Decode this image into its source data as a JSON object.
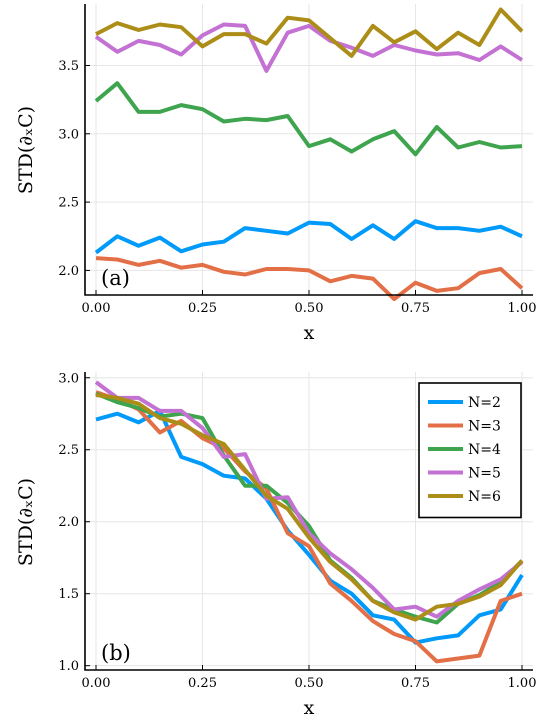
{
  "chart_data": [
    {
      "type": "line",
      "panel_label": "(a)",
      "xlabel": "x",
      "ylabel": "STD(∂ₓC)",
      "xlim": [
        0,
        1
      ],
      "ylim": [
        1.82,
        3.95
      ],
      "xticks": [
        "0.00",
        "0.25",
        "0.50",
        "0.75",
        "1.00"
      ],
      "yticks": [
        "2.0",
        "2.5",
        "3.0",
        "3.5"
      ],
      "grid": true,
      "x": [
        0,
        0.05,
        0.1,
        0.15,
        0.2,
        0.25,
        0.3,
        0.35,
        0.4,
        0.45,
        0.5,
        0.55,
        0.6,
        0.65,
        0.7,
        0.75,
        0.8,
        0.85,
        0.9,
        0.95,
        1.0
      ],
      "series": [
        {
          "color": "#009AFA",
          "values": [
            2.13,
            2.25,
            2.18,
            2.24,
            2.14,
            2.19,
            2.21,
            2.31,
            2.29,
            2.27,
            2.35,
            2.34,
            2.23,
            2.33,
            2.23,
            2.36,
            2.31,
            2.31,
            2.29,
            2.32,
            2.25
          ]
        },
        {
          "color": "#E36F47",
          "values": [
            2.09,
            2.08,
            2.04,
            2.07,
            2.02,
            2.04,
            1.99,
            1.97,
            2.01,
            2.01,
            2.0,
            1.92,
            1.96,
            1.94,
            1.79,
            1.91,
            1.85,
            1.87,
            1.98,
            2.01,
            1.87
          ]
        },
        {
          "color": "#3EA44E",
          "values": [
            3.24,
            3.37,
            3.16,
            3.16,
            3.21,
            3.18,
            3.09,
            3.11,
            3.1,
            3.13,
            2.91,
            2.96,
            2.87,
            2.96,
            3.02,
            2.85,
            3.05,
            2.9,
            2.94,
            2.9,
            2.91
          ]
        },
        {
          "color": "#C371D2",
          "values": [
            3.71,
            3.6,
            3.68,
            3.65,
            3.58,
            3.72,
            3.8,
            3.79,
            3.46,
            3.74,
            3.79,
            3.68,
            3.63,
            3.57,
            3.65,
            3.61,
            3.58,
            3.59,
            3.54,
            3.64,
            3.54
          ]
        },
        {
          "color": "#AC8D18",
          "values": [
            3.73,
            3.81,
            3.76,
            3.8,
            3.78,
            3.64,
            3.73,
            3.73,
            3.66,
            3.85,
            3.83,
            3.7,
            3.57,
            3.79,
            3.67,
            3.75,
            3.62,
            3.74,
            3.65,
            3.91,
            3.75
          ]
        }
      ]
    },
    {
      "type": "line",
      "panel_label": "(b)",
      "xlabel": "x",
      "ylabel": "STD(∂ₓC)",
      "xlim": [
        0,
        1
      ],
      "ylim": [
        0.97,
        3.04
      ],
      "xticks": [
        "0.00",
        "0.25",
        "0.50",
        "0.75",
        "1.00"
      ],
      "yticks": [
        "1.0",
        "1.5",
        "2.0",
        "2.5",
        "3.0"
      ],
      "grid": true,
      "legend_position": "top-right",
      "x": [
        0,
        0.05,
        0.1,
        0.15,
        0.2,
        0.25,
        0.3,
        0.35,
        0.4,
        0.45,
        0.5,
        0.55,
        0.6,
        0.65,
        0.7,
        0.75,
        0.8,
        0.85,
        0.9,
        0.95,
        1.0
      ],
      "series": [
        {
          "name": "N=2",
          "color": "#009AFA",
          "values": [
            2.71,
            2.75,
            2.69,
            2.77,
            2.45,
            2.4,
            2.32,
            2.3,
            2.16,
            1.94,
            1.77,
            1.59,
            1.5,
            1.35,
            1.32,
            1.16,
            1.19,
            1.21,
            1.35,
            1.39,
            1.63
          ]
        },
        {
          "name": "N=3",
          "color": "#E36F47",
          "values": [
            2.9,
            2.85,
            2.78,
            2.62,
            2.7,
            2.58,
            2.51,
            2.35,
            2.23,
            1.92,
            1.83,
            1.57,
            1.45,
            1.31,
            1.22,
            1.17,
            1.03,
            1.05,
            1.07,
            1.45,
            1.5
          ]
        },
        {
          "name": "N=4",
          "color": "#3EA44E",
          "values": [
            2.89,
            2.83,
            2.79,
            2.73,
            2.75,
            2.72,
            2.46,
            2.25,
            2.25,
            2.13,
            1.97,
            1.73,
            1.61,
            1.45,
            1.39,
            1.34,
            1.3,
            1.43,
            1.49,
            1.58,
            1.73
          ]
        },
        {
          "name": "N=5",
          "color": "#C371D2",
          "values": [
            2.97,
            2.86,
            2.86,
            2.77,
            2.77,
            2.65,
            2.45,
            2.47,
            2.16,
            2.17,
            1.92,
            1.78,
            1.67,
            1.54,
            1.39,
            1.41,
            1.34,
            1.45,
            1.53,
            1.6,
            1.72
          ]
        },
        {
          "name": "N=6",
          "color": "#AC8D18",
          "values": [
            2.88,
            2.86,
            2.82,
            2.72,
            2.68,
            2.6,
            2.54,
            2.36,
            2.18,
            2.09,
            1.89,
            1.72,
            1.6,
            1.45,
            1.37,
            1.32,
            1.41,
            1.43,
            1.48,
            1.56,
            1.73
          ]
        }
      ]
    }
  ]
}
